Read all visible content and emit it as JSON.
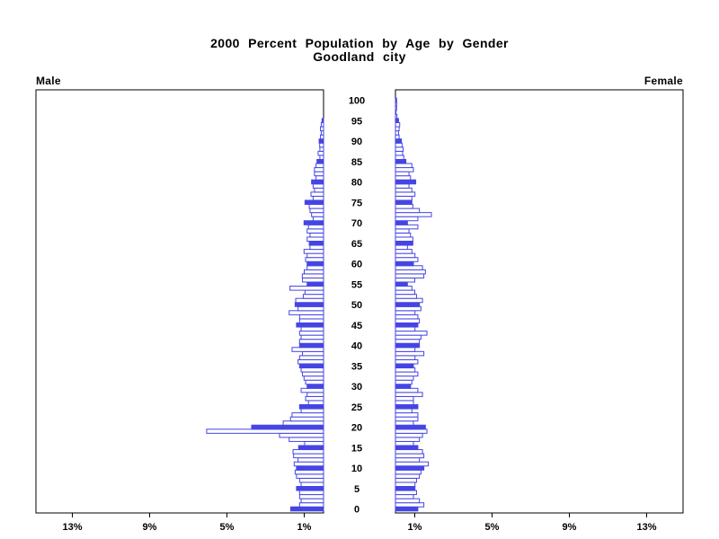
{
  "chart_data": {
    "type": "bar",
    "subtype": "population-pyramid",
    "title": "2000 Percent Population by Age by Gender",
    "subtitle": "Goodland city",
    "left_header": "Male",
    "right_header": "Female",
    "age_min": 0,
    "age_max": 100,
    "age_axis_labels": [
      "0",
      "5",
      "10",
      "15",
      "20",
      "25",
      "30",
      "35",
      "40",
      "45",
      "50",
      "55",
      "60",
      "65",
      "70",
      "75",
      "80",
      "85",
      "90",
      "95",
      "100"
    ],
    "x_ticks": [
      {
        "pct": 1,
        "label": "1%"
      },
      {
        "pct": 5,
        "label": "5%"
      },
      {
        "pct": 9,
        "label": "9%"
      },
      {
        "pct": 13,
        "label": "13%"
      }
    ],
    "x_max_percent": 14.9,
    "highlight_every": 5,
    "legend_position": "none",
    "grid": false,
    "colors": {
      "bar": "#4545e5",
      "open_bar_fill": "#ffffff",
      "axis": "#000000"
    },
    "series": [
      {
        "name": "Male",
        "values": [
          1.7,
          1.24,
          1.16,
          1.24,
          1.24,
          1.4,
          1.16,
          1.24,
          1.4,
          1.47,
          1.4,
          1.52,
          1.32,
          1.55,
          1.58,
          1.29,
          0.98,
          1.78,
          2.28,
          6.05,
          3.72,
          2.09,
          1.71,
          1.63,
          1.16,
          1.24,
          0.78,
          0.93,
          0.85,
          1.16,
          0.85,
          0.93,
          1.01,
          1.09,
          1.16,
          1.24,
          1.32,
          1.24,
          1.09,
          1.63,
          1.24,
          1.24,
          1.16,
          1.24,
          1.16,
          1.4,
          1.24,
          1.24,
          1.78,
          1.32,
          1.47,
          1.44,
          1.05,
          0.96,
          1.74,
          0.85,
          1.09,
          1.1,
          1.0,
          0.85,
          0.85,
          0.93,
          0.85,
          1.01,
          0.7,
          0.74,
          0.85,
          0.7,
          0.85,
          0.78,
          1.01,
          0.54,
          0.62,
          0.7,
          0.74,
          0.96,
          0.54,
          0.65,
          0.47,
          0.54,
          0.62,
          0.39,
          0.47,
          0.47,
          0.39,
          0.34,
          0.19,
          0.28,
          0.19,
          0.2,
          0.23,
          0.16,
          0.12,
          0.16,
          0.12,
          0.08,
          0,
          0,
          0,
          0,
          0
        ]
      },
      {
        "name": "Female",
        "values": [
          1.16,
          1.47,
          1.24,
          0.93,
          1.09,
          1.01,
          1.01,
          1.09,
          1.24,
          1.32,
          1.47,
          1.7,
          1.24,
          1.47,
          1.4,
          1.16,
          0.93,
          1.24,
          1.4,
          1.63,
          1.55,
          0.93,
          1.16,
          1.16,
          0.85,
          1.16,
          0.93,
          0.93,
          1.4,
          1.16,
          0.78,
          0.85,
          0.93,
          1.16,
          1.01,
          0.93,
          1.16,
          1.01,
          1.47,
          1.01,
          1.24,
          1.24,
          1.32,
          1.63,
          1.01,
          1.16,
          1.24,
          1.16,
          1.01,
          1.32,
          1.24,
          1.4,
          1.09,
          1.0,
          0.85,
          0.62,
          1.0,
          1.47,
          1.55,
          1.4,
          0.93,
          1.16,
          1.01,
          0.85,
          0.62,
          0.9,
          0.9,
          0.78,
          0.7,
          1.16,
          0.62,
          1.16,
          1.86,
          1.24,
          0.9,
          0.85,
          0.85,
          1.01,
          0.85,
          0.7,
          1.05,
          0.78,
          0.7,
          0.93,
          0.85,
          0.54,
          0.43,
          0.37,
          0.4,
          0.34,
          0.31,
          0.19,
          0.16,
          0.19,
          0.22,
          0.16,
          0.08,
          0.03,
          0.06,
          0.06,
          0.06
        ]
      }
    ]
  }
}
